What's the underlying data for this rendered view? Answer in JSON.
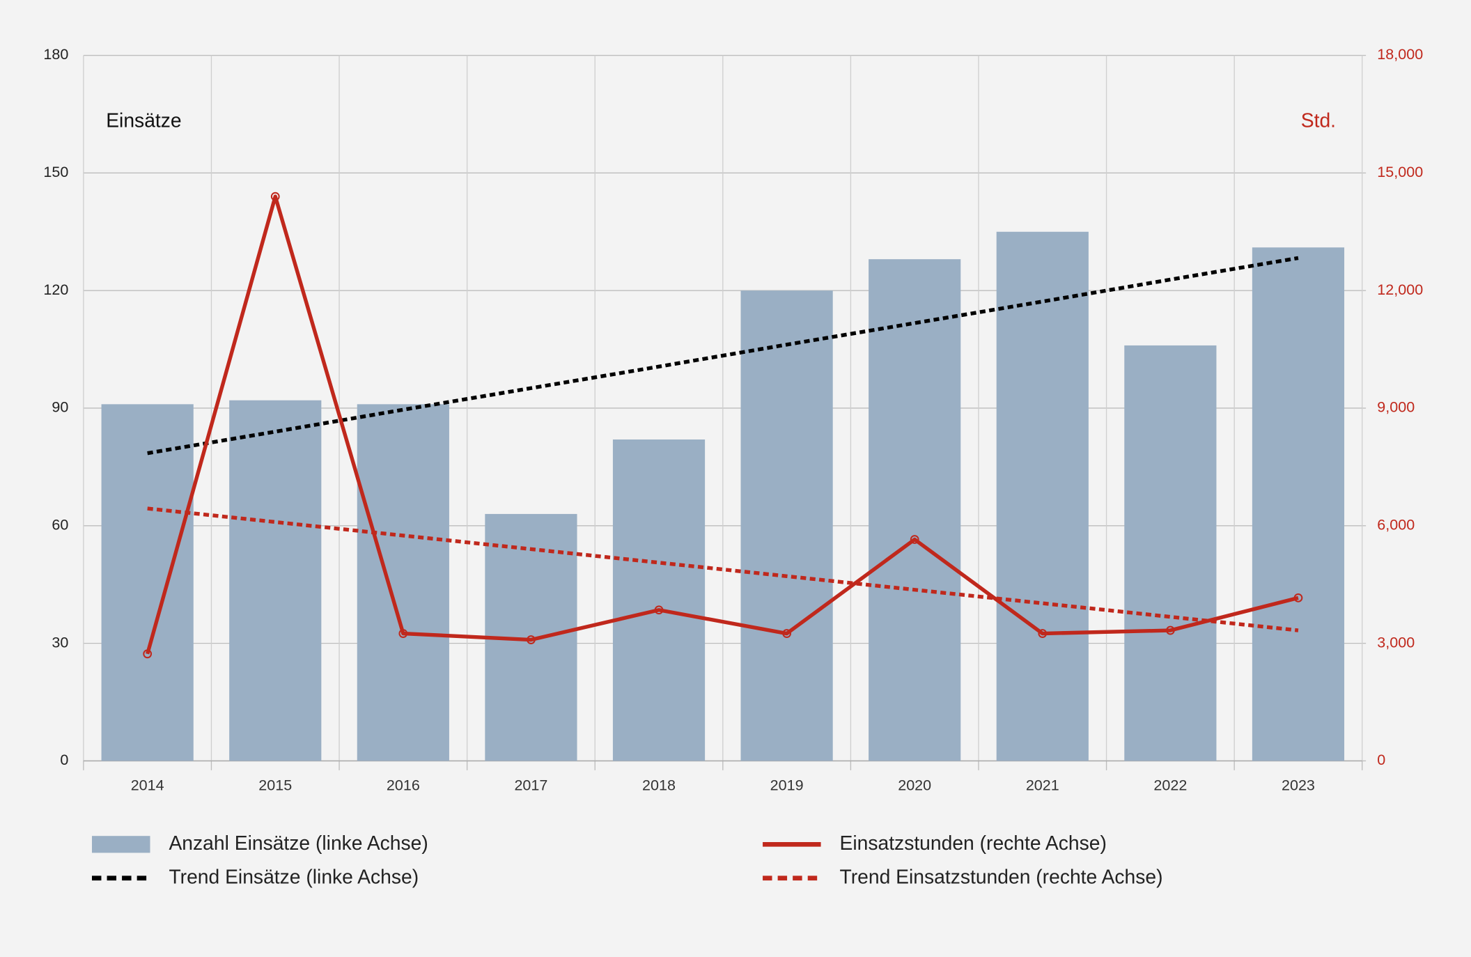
{
  "chart_data": {
    "type": "bar",
    "y_label": "Einsätze",
    "y2_label": "Std.",
    "categories": [
      "2014",
      "2015",
      "2016",
      "2017",
      "2018",
      "2019",
      "2020",
      "2021",
      "2022",
      "2023"
    ],
    "series": [
      {
        "name": "Anzahl Einsätze (linke Achse)",
        "type": "bar",
        "color": "#9aafc4",
        "values": [
          91,
          92,
          91,
          63,
          82,
          120,
          128,
          135,
          106,
          131
        ]
      },
      {
        "name": "Trend Einsätze (linke Achse)",
        "type": "line",
        "dashed": true,
        "color": "#000000",
        "values": [
          78.5,
          84.0,
          89.6,
          95.1,
          100.6,
          106.2,
          111.7,
          117.2,
          122.8,
          128.3
        ]
      },
      {
        "name": "Einsatzstunden (rechte Achse)",
        "type": "line",
        "axis": "y2",
        "markers": true,
        "color": "#c0281c",
        "values": [
          2730,
          14400,
          3250,
          3090,
          3850,
          3250,
          5650,
          3250,
          3330,
          4160
        ]
      },
      {
        "name": "Trend Einsatzstunden (rechte Achse)",
        "type": "line",
        "axis": "y2",
        "dashed": true,
        "color": "#c0281c",
        "values": [
          6440,
          6094,
          5749,
          5403,
          5058,
          4712,
          4366,
          4021,
          3675,
          3330
        ]
      }
    ],
    "ylim": [
      0,
      180
    ],
    "yticks": [
      0,
      30,
      60,
      90,
      120,
      150,
      180
    ],
    "y2lim": [
      0,
      18000
    ],
    "y2ticks": [
      0,
      {
        "value": 3000,
        "label": "3,000"
      },
      {
        "value": 6000,
        "label": "6,000"
      },
      {
        "value": 9000,
        "label": "9,000"
      },
      {
        "value": 12000,
        "label": "12,000"
      },
      {
        "value": 15000,
        "label": "15,000"
      },
      {
        "value": 18000,
        "label": "18,000"
      }
    ],
    "grid": true,
    "legend": "bottom"
  }
}
